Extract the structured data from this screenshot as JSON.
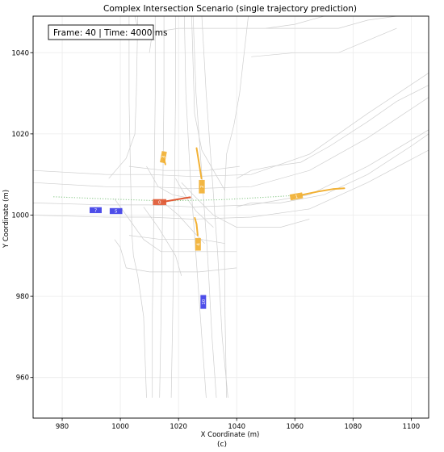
{
  "chart_data": {
    "type": "scatter",
    "title": "Complex Intersection Scenario (single trajectory prediction)",
    "xlabel": "X Coordinate (m)",
    "ylabel": "Y Coordinate (m)",
    "caption": "(c)",
    "info_box": "Frame: 40 | Time: 4000 ms",
    "xlim": [
      970,
      1106
    ],
    "ylim": [
      950,
      1049
    ],
    "xticks": [
      980,
      1000,
      1020,
      1040,
      1060,
      1080,
      1100
    ],
    "yticks": [
      960,
      980,
      1000,
      1020,
      1040
    ],
    "grid": true,
    "colors": {
      "ego": "#e05a35",
      "predicted": "#f2b134",
      "other": "#3f3fe8",
      "lane": "#cfcfcf",
      "history": "#8bc98b"
    },
    "history_path": [
      [
        977,
        1004.5
      ],
      [
        995,
        1004.0
      ],
      [
        1015,
        1003.5
      ],
      [
        1035,
        1003.8
      ],
      [
        1055,
        1004.6
      ],
      [
        1063,
        1005.0
      ]
    ],
    "vehicles": [
      {
        "id": "0",
        "role": "ego",
        "x": 1013.5,
        "y": 1003.2,
        "heading": 0,
        "length": 4.5,
        "width": 1.9,
        "trajectory": [
          [
            1015,
            1003.3
          ],
          [
            1019,
            1003.8
          ],
          [
            1024,
            1004.4
          ]
        ]
      },
      {
        "id": "1",
        "role": "predicted",
        "x": 1060.5,
        "y": 1004.6,
        "heading": 10,
        "length": 4.2,
        "width": 1.9,
        "trajectory": [
          [
            1062,
            1004.9
          ],
          [
            1068,
            1005.8
          ],
          [
            1073,
            1006.4
          ],
          [
            1077,
            1006.6
          ]
        ]
      },
      {
        "id": "2",
        "role": "predicted",
        "x": 1028.0,
        "y": 1007.0,
        "heading": 90,
        "length": 4.5,
        "width": 1.9,
        "trajectory": [
          [
            1027.9,
            1009
          ],
          [
            1027.0,
            1013
          ],
          [
            1026.2,
            1016.5
          ]
        ]
      },
      {
        "id": "3",
        "role": "predicted",
        "x": 1014.8,
        "y": 1014.3,
        "heading": 80,
        "length": 3.8,
        "width": 1.6,
        "trajectory": [
          [
            1015.0,
            1013.8
          ],
          [
            1015.5,
            1012.5
          ]
        ]
      },
      {
        "id": "4",
        "role": "predicted",
        "x": 1026.7,
        "y": 992.8,
        "heading": 90,
        "length": 4.2,
        "width": 1.8,
        "trajectory": [
          [
            1026.6,
            995.0
          ],
          [
            1026.2,
            997.8
          ],
          [
            1025.6,
            999.3
          ]
        ]
      },
      {
        "id": "5",
        "role": "other",
        "x": 998.5,
        "y": 1001.0,
        "heading": 0,
        "length": 4.2,
        "width": 1.9,
        "trajectory": []
      },
      {
        "id": "7",
        "role": "other",
        "x": 991.5,
        "y": 1001.2,
        "heading": 0,
        "length": 4.0,
        "width": 1.9,
        "trajectory": []
      },
      {
        "id": "10",
        "role": "other",
        "x": 1028.5,
        "y": 978.6,
        "heading": 90,
        "length": 4.6,
        "width": 1.8,
        "trajectory": []
      }
    ],
    "lane_polylines": [
      [
        [
          1012,
          1049
        ],
        [
          1012,
          1030
        ],
        [
          1011.5,
          1000
        ],
        [
          1011,
          975
        ],
        [
          1011,
          955
        ]
      ],
      [
        [
          1015,
          1049
        ],
        [
          1015,
          1030
        ],
        [
          1014.5,
          1000
        ],
        [
          1014,
          975
        ],
        [
          1013.5,
          955
        ]
      ],
      [
        [
          1019,
          1049
        ],
        [
          1019,
          1030
        ],
        [
          1018.5,
          1000
        ],
        [
          1018,
          975
        ],
        [
          1017.5,
          955
        ]
      ],
      [
        [
          1022,
          1049
        ],
        [
          1022.5,
          1030
        ],
        [
          1024,
          1010
        ],
        [
          1026,
          990
        ],
        [
          1028,
          970
        ],
        [
          1029.5,
          955
        ]
      ],
      [
        [
          1025,
          1049
        ],
        [
          1026,
          1030
        ],
        [
          1028,
          1010
        ],
        [
          1030,
          990
        ],
        [
          1031.5,
          970
        ],
        [
          1033,
          955
        ]
      ],
      [
        [
          1028,
          1049
        ],
        [
          1029.5,
          1030
        ],
        [
          1031.5,
          1010
        ],
        [
          1033.5,
          990
        ],
        [
          1035,
          970
        ],
        [
          1037,
          955
        ]
      ],
      [
        [
          1003,
          1049
        ],
        [
          1003,
          1028
        ],
        [
          1003.5,
          1010
        ],
        [
          1004,
          995
        ],
        [
          1004.5,
          990
        ],
        [
          1006,
          985
        ],
        [
          1008,
          975
        ],
        [
          1009,
          955
        ]
      ],
      [
        [
          1044,
          1049
        ],
        [
          1041,
          1030
        ],
        [
          1039,
          1022
        ],
        [
          1036.5,
          1015
        ],
        [
          1035.8,
          1005
        ],
        [
          1035.8,
          990
        ],
        [
          1036,
          975
        ],
        [
          1036.5,
          955
        ]
      ],
      [
        [
          970,
          1011
        ],
        [
          995,
          1010
        ],
        [
          1010,
          1010
        ],
        [
          1025,
          1009.5
        ],
        [
          1045,
          1010
        ],
        [
          1065,
          1015
        ],
        [
          1085,
          1025
        ],
        [
          1106,
          1035
        ]
      ],
      [
        [
          970,
          1008
        ],
        [
          995,
          1007
        ],
        [
          1010,
          1007
        ],
        [
          1025,
          1006.5
        ],
        [
          1045,
          1007
        ],
        [
          1065,
          1011
        ],
        [
          1085,
          1019
        ],
        [
          1106,
          1029
        ]
      ],
      [
        [
          970,
          1003
        ],
        [
          995,
          1002.5
        ],
        [
          1010,
          1002.5
        ],
        [
          1025,
          1002
        ],
        [
          1045,
          1002.5
        ],
        [
          1065,
          1005
        ],
        [
          1085,
          1012
        ],
        [
          1106,
          1021
        ]
      ],
      [
        [
          970,
          1000
        ],
        [
          995,
          999.5
        ],
        [
          1010,
          999.5
        ],
        [
          1025,
          999
        ],
        [
          1045,
          999.5
        ],
        [
          1065,
          1001.5
        ],
        [
          1085,
          1008
        ],
        [
          1106,
          1016
        ]
      ],
      [
        [
          1040,
          1009
        ],
        [
          1045,
          1011
        ],
        [
          1052,
          1012
        ],
        [
          1062,
          1013
        ],
        [
          1072,
          1017
        ],
        [
          1085,
          1023
        ],
        [
          1095,
          1028
        ],
        [
          1106,
          1032
        ]
      ],
      [
        [
          1040,
          1002
        ],
        [
          1045,
          1003
        ],
        [
          1055,
          1003
        ],
        [
          1070,
          1005
        ],
        [
          1085,
          1010
        ],
        [
          1100,
          1017
        ],
        [
          1106,
          1020
        ]
      ],
      [
        [
          998,
          1004
        ],
        [
          1003,
          999
        ],
        [
          1008,
          994
        ],
        [
          1014,
          991
        ],
        [
          1025,
          991
        ],
        [
          1040,
          991
        ]
      ],
      [
        [
          996,
          1009
        ],
        [
          1002,
          1014
        ],
        [
          1005,
          1020
        ],
        [
          1005.5,
          1030
        ],
        [
          1006,
          1049
        ]
      ],
      [
        [
          1021,
          1008
        ],
        [
          1025,
          1005
        ],
        [
          1032,
          1000
        ],
        [
          1040,
          997
        ],
        [
          1055,
          997
        ],
        [
          1065,
          999
        ]
      ],
      [
        [
          1036,
          1006
        ],
        [
          1032,
          1011
        ],
        [
          1028,
          1016
        ],
        [
          1025.5,
          1025
        ],
        [
          1024.5,
          1049
        ]
      ],
      [
        [
          1010,
          1040
        ],
        [
          1011,
          1045
        ],
        [
          1020,
          1046
        ],
        [
          1045,
          1046
        ],
        [
          1065,
          1046
        ],
        [
          1075,
          1046
        ],
        [
          1085,
          1048
        ],
        [
          1095,
          1049
        ]
      ],
      [
        [
          1050,
          1046
        ],
        [
          1060,
          1047
        ],
        [
          1070,
          1049
        ]
      ],
      [
        [
          1045,
          1039
        ],
        [
          1060,
          1040
        ],
        [
          1075,
          1040
        ],
        [
          1085,
          1043
        ],
        [
          1095,
          1046
        ]
      ],
      [
        [
          1005,
          1049
        ],
        [
          1006,
          1046
        ],
        [
          1012,
          1043
        ]
      ],
      [
        [
          998,
          994
        ],
        [
          1000,
          992
        ],
        [
          1002,
          987
        ],
        [
          1010,
          986
        ],
        [
          1027,
          986
        ],
        [
          1040,
          987
        ]
      ],
      [
        [
          1003,
          995
        ],
        [
          1014,
          994
        ],
        [
          1028,
          994
        ],
        [
          1036,
          993
        ]
      ],
      [
        [
          1003,
          1012
        ],
        [
          1015,
          1011
        ],
        [
          1030,
          1011
        ],
        [
          1041,
          1012
        ]
      ],
      [
        [
          1008,
          1002
        ],
        [
          1013,
          997
        ],
        [
          1019,
          990
        ],
        [
          1021,
          985
        ]
      ],
      [
        [
          1019,
          1009
        ],
        [
          1023,
          1004
        ],
        [
          1026,
          1001
        ],
        [
          1032,
          997
        ]
      ],
      [
        [
          1009,
          1012
        ],
        [
          1013,
          1007
        ],
        [
          1018,
          1005
        ],
        [
          1025,
          1004
        ]
      ],
      [
        [
          1015,
          1003
        ],
        [
          1020,
          1000
        ],
        [
          1025,
          996
        ],
        [
          1029,
          993
        ]
      ]
    ]
  }
}
